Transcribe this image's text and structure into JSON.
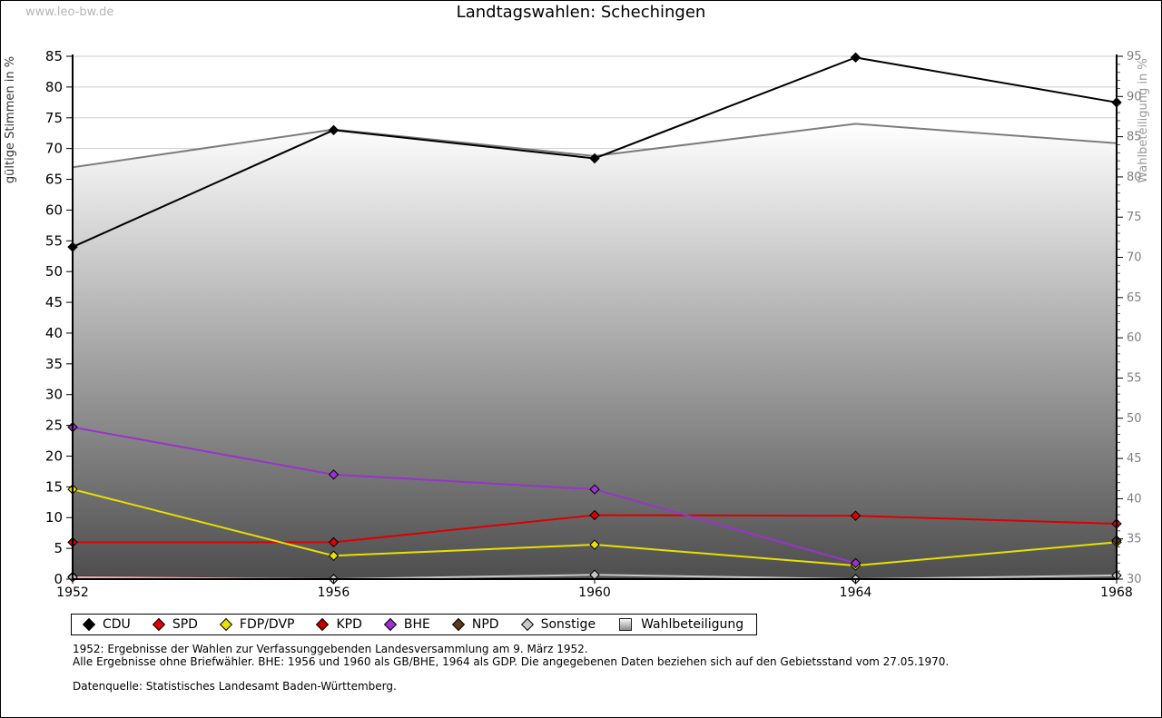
{
  "page": {
    "watermark": "www.leo-bw.de",
    "title": "Landtagswahlen: Schechingen",
    "footnotes": [
      "1952: Ergebnisse der Wahlen zur Verfassunggebenden Landesversammlung am 9. März 1952.",
      "Alle Ergebnisse ohne Briefwähler. BHE: 1956 und 1960 als GB/BHE, 1964 als GDP. Die angegebenen Daten beziehen sich auf den Gebietsstand vom 27.05.1970.",
      "Datenquelle: Statistisches Landesamt Baden-Württemberg."
    ]
  },
  "chart_data": {
    "type": "line",
    "title": "Landtagswahlen: Schechingen",
    "x": [
      1952,
      1956,
      1960,
      1964,
      1968
    ],
    "left_axis": {
      "label": "gültige Stimmen in %",
      "min": 0,
      "max": 85,
      "tick_step": 5
    },
    "right_axis": {
      "label": "Wahlbeteiligung in %",
      "min": 30,
      "max": 95,
      "tick_step": 5
    },
    "grid": "horizontal",
    "legend_position": "bottom",
    "series": [
      {
        "name": "CDU",
        "color": "#000000",
        "axis": "left",
        "marker": "diamond",
        "values": [
          54.0,
          73.0,
          68.4,
          84.8,
          77.5
        ]
      },
      {
        "name": "SPD",
        "color": "#dd0000",
        "axis": "left",
        "marker": "diamond",
        "values": [
          6.0,
          6.0,
          10.4,
          10.3,
          9.0
        ]
      },
      {
        "name": "FDP/DVP",
        "color": "#e8e000",
        "axis": "left",
        "marker": "diamond",
        "values": [
          14.6,
          3.8,
          5.6,
          2.2,
          6.0
        ]
      },
      {
        "name": "KPD",
        "color": "#bb0000",
        "axis": "left",
        "marker": "diamond",
        "values": [
          0.4,
          0.0,
          null,
          null,
          null
        ]
      },
      {
        "name": "BHE",
        "color": "#9933cc",
        "axis": "left",
        "marker": "diamond",
        "values": [
          24.7,
          17.0,
          14.6,
          2.6,
          null
        ]
      },
      {
        "name": "NPD",
        "color": "#5c3a21",
        "axis": "left",
        "marker": "diamond",
        "values": [
          null,
          null,
          null,
          null,
          6.3
        ]
      },
      {
        "name": "Sonstige",
        "color": "#c8c8c8",
        "axis": "left",
        "marker": "diamond",
        "values": [
          0.3,
          0.0,
          0.7,
          0.0,
          0.6
        ]
      },
      {
        "name": "Wahlbeteiligung",
        "color": "#7d7d7d",
        "axis": "right",
        "marker": "square",
        "area": true,
        "values": [
          81.2,
          85.9,
          82.6,
          86.6,
          84.2
        ]
      }
    ]
  }
}
